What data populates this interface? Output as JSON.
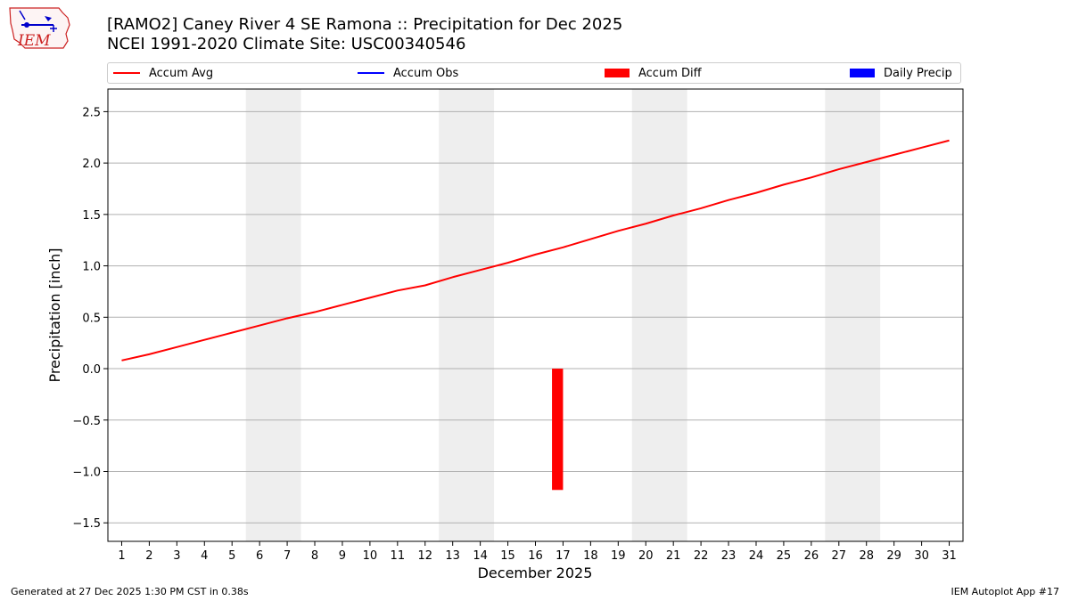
{
  "header": {
    "title_line1": "[RAMO2] Caney River 4 SE Ramona :: Precipitation for Dec 2025",
    "title_line2": "NCEI 1991-2020 Climate Site: USC00340546"
  },
  "logo": {
    "text": "IEM",
    "color": "#cc2222"
  },
  "legend": {
    "placement": "top",
    "items": [
      {
        "label": "Accum Avg",
        "kind": "line",
        "color": "#ff0000"
      },
      {
        "label": "Accum Obs",
        "kind": "line",
        "color": "#0000ff"
      },
      {
        "label": "Accum Diff",
        "kind": "patch",
        "color": "#ff0000"
      },
      {
        "label": "Daily Precip",
        "kind": "patch",
        "color": "#0000ff"
      }
    ]
  },
  "footer": {
    "left": "Generated at 27 Dec 2025 1:30 PM CST in 0.38s",
    "right": "IEM Autoplot App #17"
  },
  "chart_data": {
    "type": "line",
    "xlabel": "December 2025",
    "ylabel": "Precipitation [inch]",
    "xlim": [
      0.5,
      31.5
    ],
    "ylim": [
      -1.68,
      2.72
    ],
    "x_ticks": [
      1,
      2,
      3,
      4,
      5,
      6,
      7,
      8,
      9,
      10,
      11,
      12,
      13,
      14,
      15,
      16,
      17,
      18,
      19,
      20,
      21,
      22,
      23,
      24,
      25,
      26,
      27,
      28,
      29,
      30,
      31
    ],
    "y_ticks": [
      -1.5,
      -1.0,
      -0.5,
      0.0,
      0.5,
      1.0,
      1.5,
      2.0,
      2.5
    ],
    "y_tick_labels": [
      "−1.5",
      "−1.0",
      "−0.5",
      "0.0",
      "0.5",
      "1.0",
      "1.5",
      "2.0",
      "2.5"
    ],
    "grid": "horizontal",
    "weekend_shading": [
      [
        5.5,
        7.5
      ],
      [
        12.5,
        14.5
      ],
      [
        19.5,
        21.5
      ],
      [
        26.5,
        28.5
      ]
    ],
    "shading_color": "#eeeeee",
    "series": [
      {
        "name": "Accum Avg",
        "kind": "line",
        "color": "#ff0000",
        "x": [
          1,
          2,
          3,
          4,
          5,
          6,
          7,
          8,
          9,
          10,
          11,
          12,
          13,
          14,
          15,
          16,
          17,
          18,
          19,
          20,
          21,
          22,
          23,
          24,
          25,
          26,
          27,
          28,
          29,
          30,
          31
        ],
        "values": [
          0.08,
          0.14,
          0.21,
          0.28,
          0.35,
          0.42,
          0.49,
          0.55,
          0.62,
          0.69,
          0.76,
          0.81,
          0.89,
          0.96,
          1.03,
          1.11,
          1.18,
          1.26,
          1.34,
          1.41,
          1.49,
          1.56,
          1.64,
          1.71,
          1.79,
          1.86,
          1.94,
          2.01,
          2.08,
          2.15,
          2.22
        ]
      },
      {
        "name": "Accum Diff",
        "kind": "bar",
        "color": "#ff0000",
        "x": [
          16.8
        ],
        "bar_width": 0.4,
        "values": [
          -1.18
        ]
      }
    ]
  }
}
